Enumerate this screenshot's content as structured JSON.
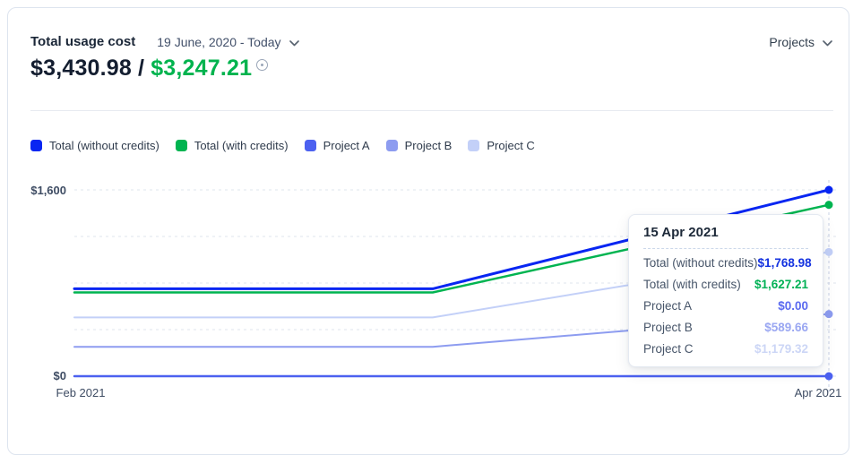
{
  "header": {
    "title": "Total usage cost",
    "date_range": "19 June, 2020 - Today",
    "projects_label": "Projects"
  },
  "icons": {
    "date_range_chevron": "chevron-down",
    "projects_chevron": "chevron-down",
    "summary_info": "info-circle"
  },
  "summary": {
    "total_without_credits": "$3,430.98",
    "separator": "/",
    "total_with_credits": "$3,247.21",
    "green_color": "#00b34e"
  },
  "legend": [
    {
      "label": "Total (without credits)",
      "color": "#0826f2"
    },
    {
      "label": "Total (with credits)",
      "color": "#00b450"
    },
    {
      "label": "Project A",
      "color": "#4c61f0"
    },
    {
      "label": "Project B",
      "color": "#8d9cf0"
    },
    {
      "label": "Project C",
      "color": "#c3d0f8"
    }
  ],
  "chart_data": {
    "type": "line",
    "title": "Total usage cost over time",
    "x_axis": {
      "labels": [
        "Feb 2021",
        "Apr 2021"
      ],
      "hover_date": "15 Apr 2021"
    },
    "y_axis": {
      "top_label": "$1,600",
      "bottom_label": "$0",
      "gridline_count": 5,
      "range": [
        0,
        1768.98
      ]
    },
    "series": [
      {
        "name": "Total (without credits)",
        "color": "#0826f2",
        "stroke_width": 3,
        "points": [
          [
            0,
            830
          ],
          [
            0.475,
            830
          ],
          [
            1,
            1768.98
          ]
        ],
        "end_value": 1768.98
      },
      {
        "name": "Total (with credits)",
        "color": "#00b450",
        "stroke_width": 2.5,
        "points": [
          [
            0,
            795
          ],
          [
            0.475,
            795
          ],
          [
            1,
            1627.21
          ]
        ],
        "end_value": 1627.21
      },
      {
        "name": "Project A",
        "color": "#4c61f0",
        "stroke_width": 2.5,
        "points": [
          [
            0,
            0
          ],
          [
            0.475,
            0
          ],
          [
            1,
            0
          ]
        ],
        "end_value": 0
      },
      {
        "name": "Project B",
        "color": "#8d9cf0",
        "stroke_width": 2,
        "points": [
          [
            0,
            279
          ],
          [
            0.475,
            279
          ],
          [
            1,
            589.66
          ]
        ],
        "end_value": 589.66
      },
      {
        "name": "Project C",
        "color": "#c3d0f8",
        "stroke_width": 2,
        "points": [
          [
            0,
            558
          ],
          [
            0.475,
            558
          ],
          [
            1,
            1179.32
          ]
        ],
        "end_value": 1179.32
      }
    ],
    "hover_t": 1,
    "grid_on": true,
    "legend_position": "top"
  },
  "tooltip": {
    "date": "15 Apr 2021",
    "rows": [
      {
        "label": "Total (without credits)",
        "value": "$1,768.98",
        "color": "#1432e0"
      },
      {
        "label": "Total (with credits)",
        "value": "$1,627.21",
        "color": "#00b155"
      },
      {
        "label": "Project A",
        "value": "$0.00",
        "color": "#5b6af0"
      },
      {
        "label": "Project B",
        "value": "$589.66",
        "color": "#9aa7f2"
      },
      {
        "label": "Project C",
        "value": "$1,179.32",
        "color": "#ccd6f6"
      }
    ]
  }
}
